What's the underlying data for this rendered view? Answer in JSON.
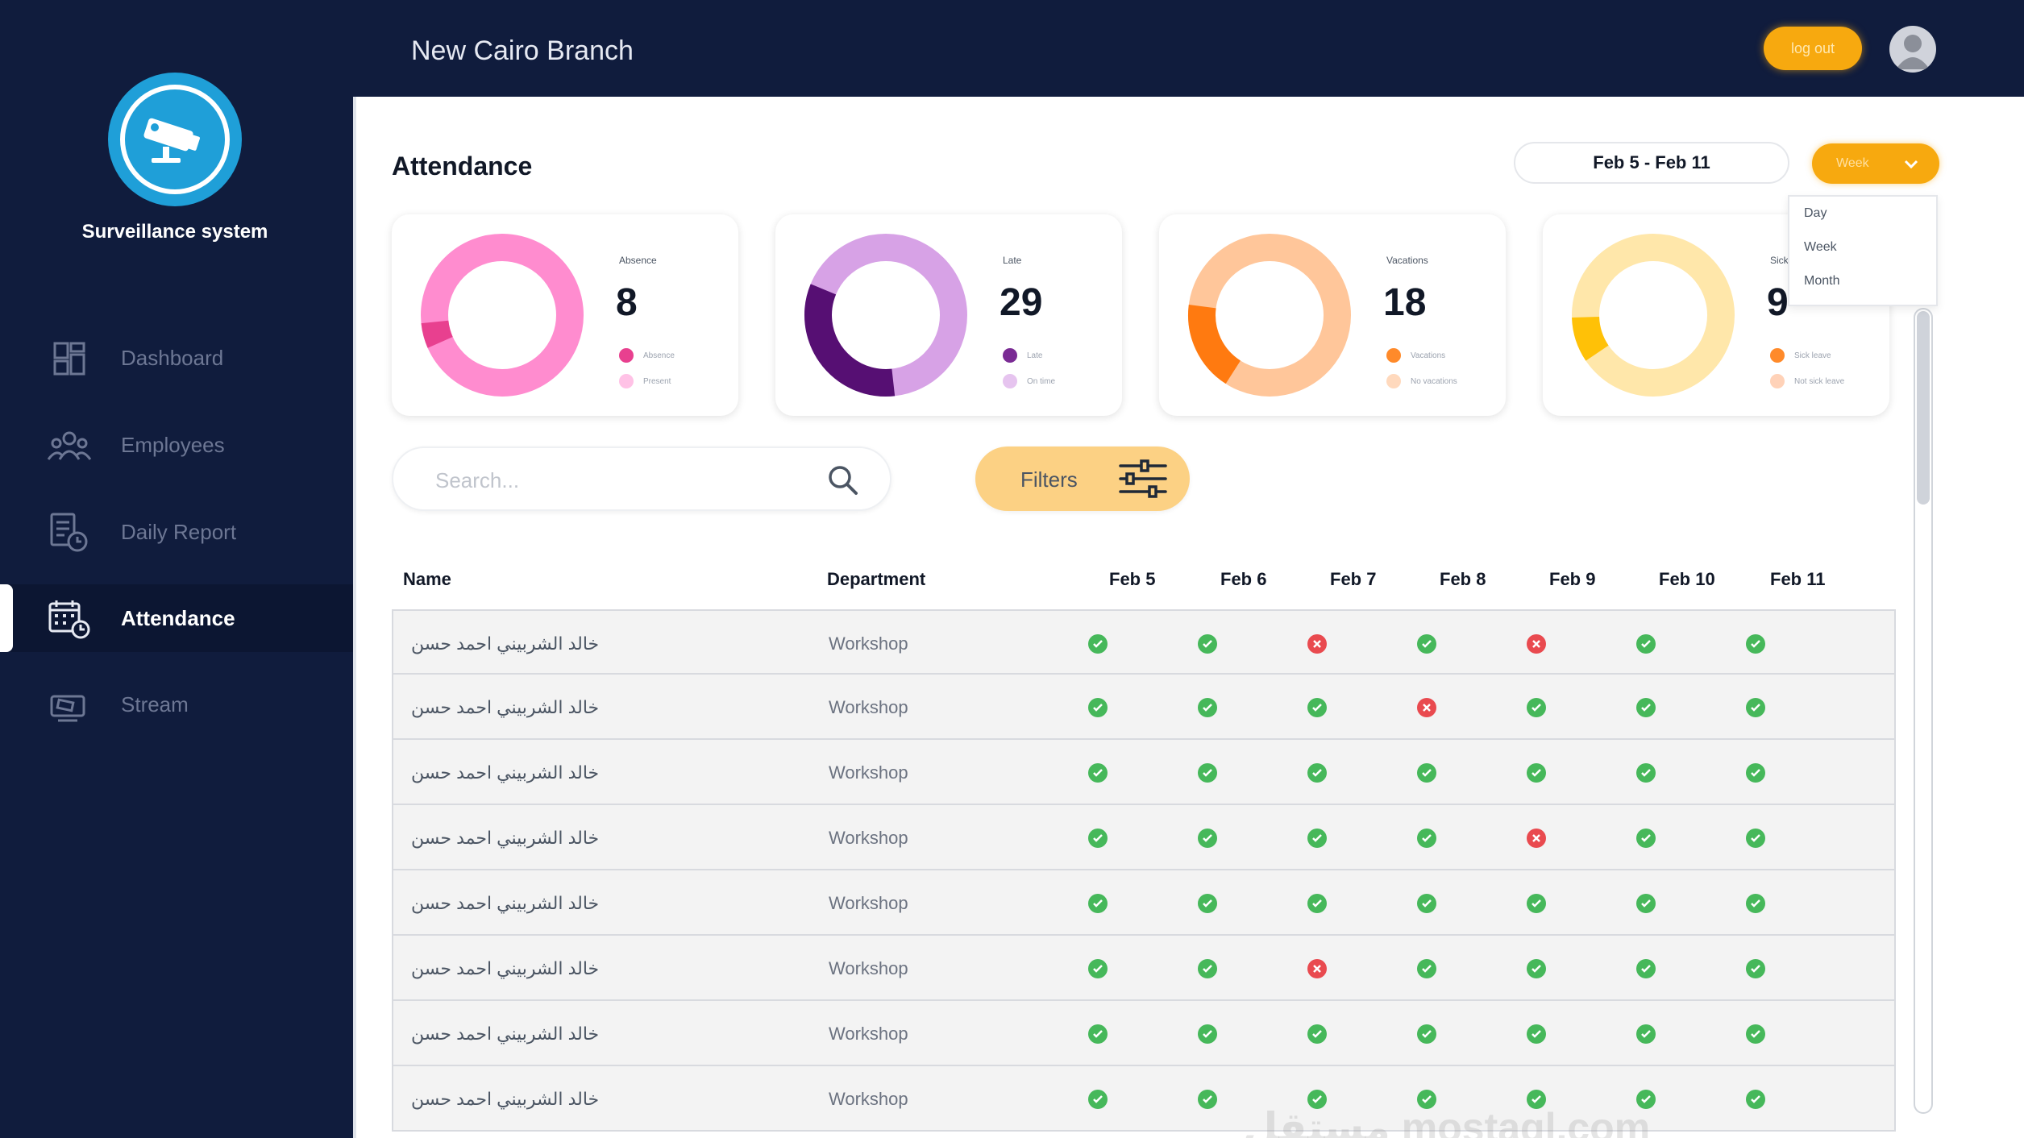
{
  "app": {
    "logo_title": "Surveillance system",
    "branch": "New Cairo Branch",
    "logout_label": "log out"
  },
  "sidebar": {
    "items": [
      {
        "label": "Dashboard",
        "icon": "dashboard-icon"
      },
      {
        "label": "Employees",
        "icon": "employees-icon"
      },
      {
        "label": "Daily Report",
        "icon": "daily-report-icon"
      },
      {
        "label": "Attendance",
        "icon": "attendance-icon",
        "active": true
      },
      {
        "label": "Stream",
        "icon": "stream-icon"
      }
    ]
  },
  "page": {
    "title": "Attendance",
    "date_range": "Feb 5 - Feb 11",
    "period": {
      "selected": "Week",
      "options": [
        "Day",
        "Week",
        "Month"
      ]
    }
  },
  "cards": [
    {
      "label": "Absence",
      "value": "8",
      "color": "#ff8ccf",
      "accent": "#e8408f",
      "fraction": 0.05,
      "legend": [
        "Absence",
        "Present"
      ]
    },
    {
      "label": "Late",
      "value": "29",
      "color": "#d7a2e6",
      "accent": "#560f73",
      "fraction": 0.33,
      "legend": [
        "Late",
        "On time"
      ]
    },
    {
      "label": "Vacations",
      "value": "18",
      "color": "#ffc69a",
      "accent": "#ff7a10",
      "fraction": 0.18,
      "legend": [
        "Vacations",
        "No vacations"
      ]
    },
    {
      "label": "Sick",
      "value": "9",
      "color": "#ffe7aa",
      "accent": "#ffc107",
      "fraction": 0.09,
      "legend": [
        "Sick leave",
        "Not sick leave"
      ]
    }
  ],
  "search": {
    "placeholder": "Search..."
  },
  "filters_label": "Filters",
  "table": {
    "headers": {
      "name": "Name",
      "department": "Department",
      "days": [
        "Feb 5",
        "Feb 6",
        "Feb 7",
        "Feb 8",
        "Feb 9",
        "Feb 10",
        "Feb 11"
      ]
    },
    "rows": [
      {
        "name": "خالد الشربيني احمد حسن",
        "department": "Workshop",
        "status": [
          "present",
          "present",
          "absent",
          "present",
          "absent",
          "present",
          "present"
        ]
      },
      {
        "name": "خالد الشربيني احمد حسن",
        "department": "Workshop",
        "status": [
          "present",
          "present",
          "present",
          "absent",
          "present",
          "present",
          "present"
        ]
      },
      {
        "name": "خالد الشربيني احمد حسن",
        "department": "Workshop",
        "status": [
          "present",
          "present",
          "present",
          "present",
          "present",
          "present",
          "present"
        ]
      },
      {
        "name": "خالد الشربيني احمد حسن",
        "department": "Workshop",
        "status": [
          "present",
          "present",
          "present",
          "present",
          "absent",
          "present",
          "present"
        ]
      },
      {
        "name": "خالد الشربيني احمد حسن",
        "department": "Workshop",
        "status": [
          "present",
          "present",
          "present",
          "present",
          "present",
          "present",
          "present"
        ]
      },
      {
        "name": "خالد الشربيني احمد حسن",
        "department": "Workshop",
        "status": [
          "present",
          "present",
          "absent",
          "present",
          "present",
          "present",
          "present"
        ]
      },
      {
        "name": "خالد الشربيني احمد حسن",
        "department": "Workshop",
        "status": [
          "present",
          "present",
          "present",
          "present",
          "present",
          "present",
          "present"
        ]
      },
      {
        "name": "خالد الشربيني احمد حسن",
        "department": "Workshop",
        "status": [
          "present",
          "present",
          "present",
          "present",
          "present",
          "present",
          "present"
        ]
      }
    ]
  },
  "watermark": "مستقل mostaql.com"
}
